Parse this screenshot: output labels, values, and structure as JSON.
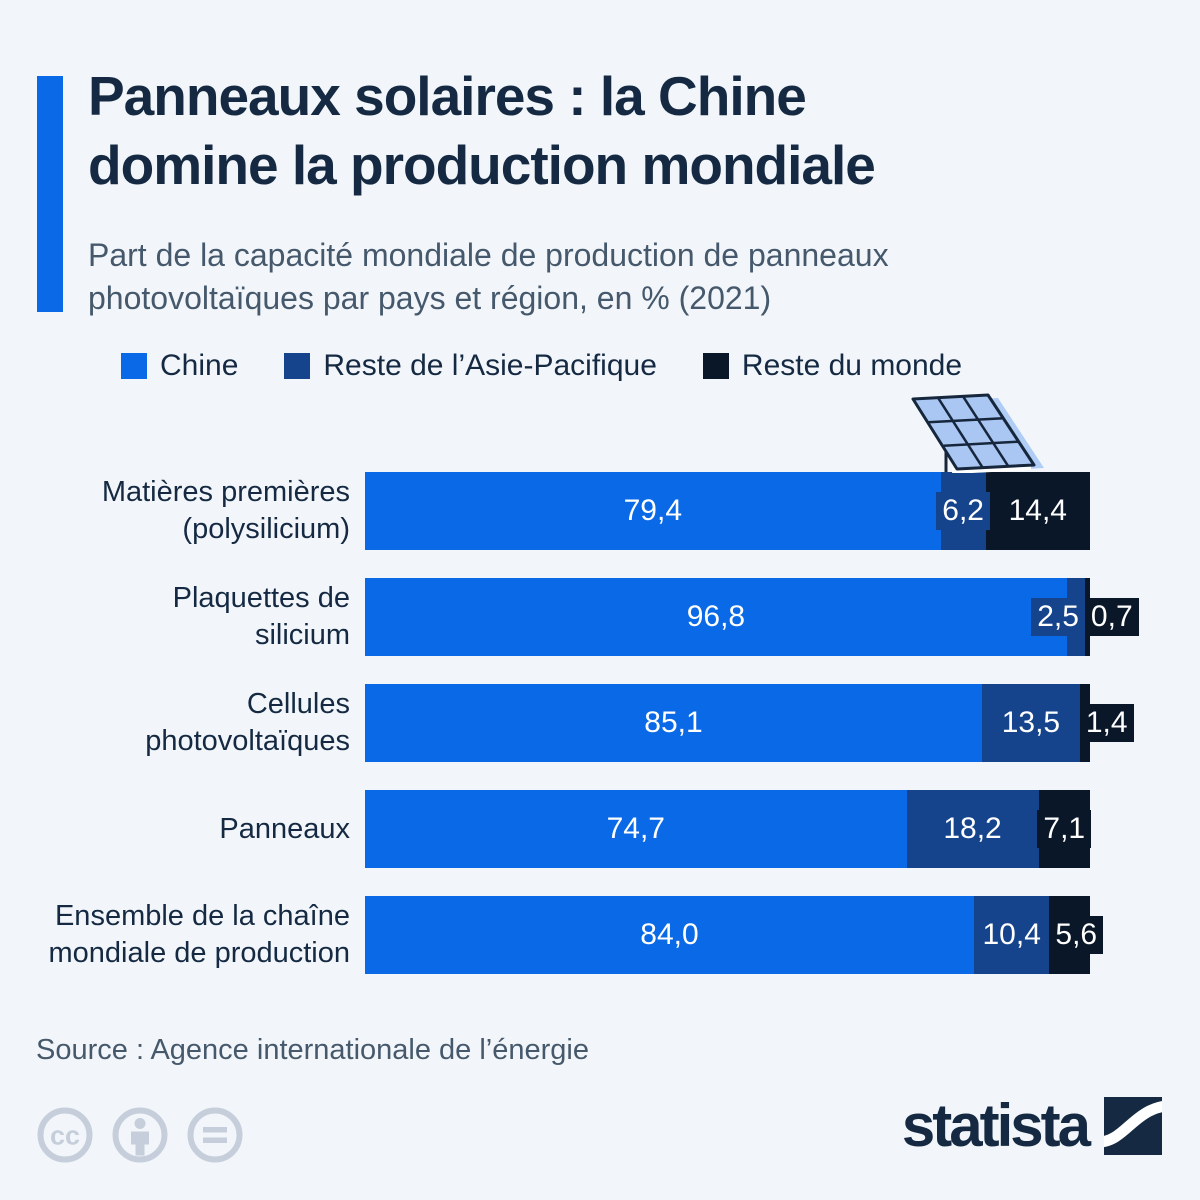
{
  "header": {
    "title_lines": [
      "Panneaux solaires : la Chine",
      "domine la production mondiale"
    ],
    "subtitle_lines": [
      "Part de la capacité mondiale de production de panneaux",
      "photovoltaïques par pays et région, en % (2021)"
    ]
  },
  "chart_data": {
    "type": "bar",
    "orientation": "horizontal",
    "stacked": true,
    "unit": "%",
    "xlim": [
      0,
      100
    ],
    "grid": false,
    "legend_position": "top",
    "value_format": "one decimal, comma as decimal separator",
    "categories": [
      [
        "Matières premières",
        "(polysilicium)"
      ],
      [
        "Plaquettes de",
        "silicium"
      ],
      [
        "Cellules",
        "photovoltaïques"
      ],
      [
        "Panneaux"
      ],
      [
        "Ensemble de la chaîne",
        "mondiale de production"
      ]
    ],
    "series": [
      {
        "name": "Chine",
        "color": "#0A69E6",
        "values": [
          79.4,
          96.8,
          85.1,
          74.7,
          84.0
        ]
      },
      {
        "name": "Reste de l’Asie-Pacifique",
        "color": "#15448C",
        "values": [
          6.2,
          2.5,
          13.5,
          18.2,
          10.4
        ]
      },
      {
        "name": "Reste du monde",
        "color": "#0A1729",
        "values": [
          14.4,
          0.7,
          1.4,
          7.1,
          5.6
        ]
      }
    ]
  },
  "colors": {
    "background": "#F2F6FA",
    "accent_bar": "#0A69E6",
    "title_text": "#152A42",
    "subtitle_text": "#46596C",
    "value_text": "#FFFFFF",
    "footer_icons": "#C5CEDA",
    "solar_panel_fill": "#A9C7F2"
  },
  "footer": {
    "source": "Source : Agence internationale de l’énergie",
    "license_icons": [
      "cc",
      "by",
      "nd"
    ],
    "brand": "statista"
  }
}
